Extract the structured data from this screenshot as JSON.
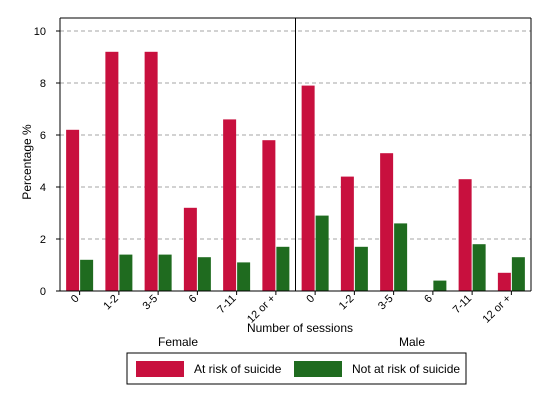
{
  "colors": {
    "at_risk": "#c8103e",
    "not_at_risk": "#1f6b1f",
    "grid": "#a6a6a6",
    "axis": "#000000"
  },
  "chart_data": {
    "type": "bar",
    "ylabel": "Percentage %",
    "xlabel": "Number of sessions",
    "ylim": [
      0,
      10.5
    ],
    "yticks": [
      0,
      2,
      4,
      6,
      8,
      10
    ],
    "grid": true,
    "legend_position": "bottom",
    "categories": [
      "0",
      "1-2",
      "3-5",
      "6",
      "7-11",
      "12 or +"
    ],
    "groups": [
      {
        "name": "Female",
        "series": [
          {
            "name": "At risk of suicide",
            "values": [
              6.2,
              9.2,
              9.2,
              3.2,
              6.6,
              5.8
            ]
          },
          {
            "name": "Not at risk of suicide",
            "values": [
              1.2,
              1.4,
              1.4,
              1.3,
              1.1,
              1.7
            ]
          }
        ]
      },
      {
        "name": "Male",
        "series": [
          {
            "name": "At risk of suicide",
            "values": [
              7.9,
              4.4,
              5.3,
              0,
              4.3,
              0.7
            ]
          },
          {
            "name": "Not at risk of suicide",
            "values": [
              2.9,
              1.7,
              2.6,
              0.4,
              1.8,
              1.3
            ]
          }
        ]
      }
    ],
    "legend": [
      "At risk of suicide",
      "Not at risk of suicide"
    ]
  }
}
